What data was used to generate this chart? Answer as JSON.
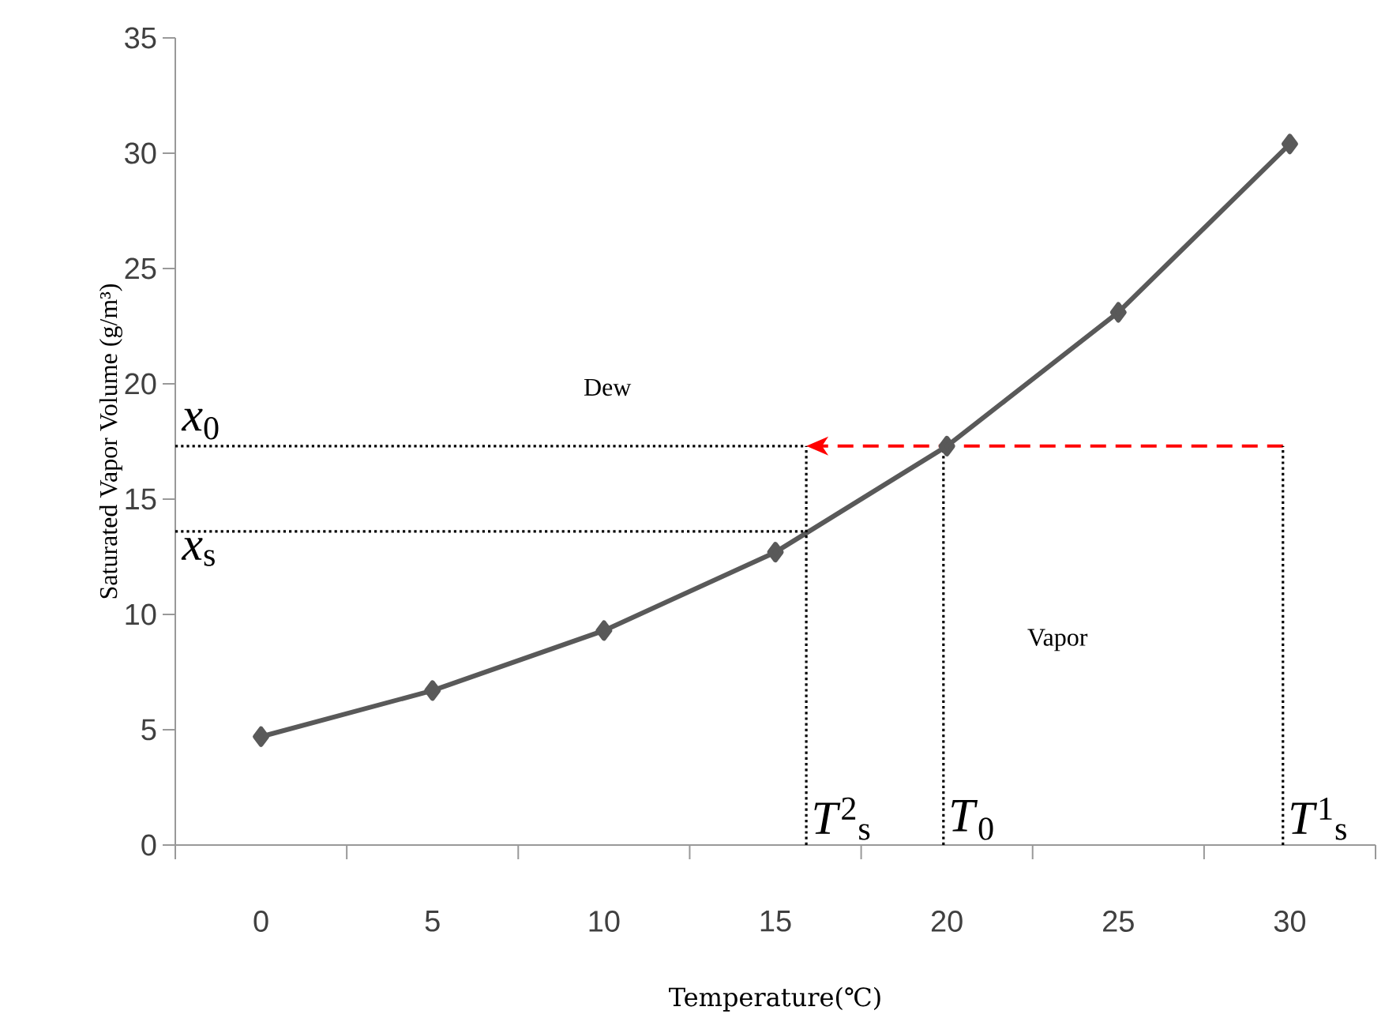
{
  "chart_data": {
    "type": "line",
    "xlabel": "Temperature(℃)",
    "ylabel": "Saturated Vapor Volume (g/m³)",
    "xlim": [
      -2.5,
      32.5
    ],
    "xticks": [
      0,
      5,
      10,
      15,
      20,
      25,
      30
    ],
    "ylim": [
      0,
      35
    ],
    "yticks": [
      0,
      5,
      10,
      15,
      20,
      25,
      30,
      35
    ],
    "grid": false,
    "series": [
      {
        "color": "#595959",
        "marker": "diamond",
        "line_style": "solid",
        "x": [
          0,
          5,
          10,
          15,
          20,
          25,
          30
        ],
        "values": [
          4.7,
          6.7,
          9.3,
          12.7,
          17.3,
          23.1,
          30.4
        ]
      },
      {
        "color": "#ff0000",
        "marker": "none",
        "line_style": "dashed",
        "x": [
          29.8,
          15.9
        ],
        "values": [
          17.3,
          17.3
        ]
      }
    ],
    "ref_lines": [
      {
        "axis": "y",
        "value": 17.3,
        "label": "*x*$_{0}$",
        "line_style": "dotted",
        "color": "#000000"
      },
      {
        "axis": "y",
        "value": 13.6,
        "label": "*x*$_{s}$",
        "line_style": "dotted",
        "color": "#000000"
      },
      {
        "axis": "x",
        "value": 15.9,
        "label": "*T*$^{2}$$_{s}$",
        "line_style": "dotted",
        "color": "#000000"
      },
      {
        "axis": "x",
        "value": 19.9,
        "label": "*T*$_{0}$",
        "line_style": "dotted",
        "color": "#000000"
      },
      {
        "axis": "x",
        "value": 29.8,
        "label": "*T*$^{1}$$_{s}$",
        "line_style": "dotted",
        "color": "#000000"
      }
    ],
    "annotations": [
      "Dew",
      "Vapor"
    ]
  }
}
